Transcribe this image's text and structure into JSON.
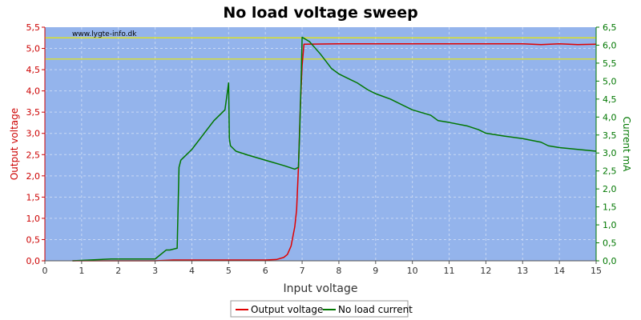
{
  "chart_data": {
    "type": "line",
    "title": "No load voltage sweep",
    "watermark": "www.lygte-info.dk",
    "xlabel": "Input voltage",
    "ylabel_left": "Output voltage",
    "ylabel_right": "Current mA",
    "xlim": [
      0,
      15
    ],
    "ylim_left": [
      0,
      5.5
    ],
    "ylim_right": [
      0,
      6.5
    ],
    "x_ticks": [
      "0",
      "1",
      "2",
      "3",
      "4",
      "5",
      "6",
      "7",
      "8",
      "9",
      "10",
      "11",
      "12",
      "13",
      "14",
      "15"
    ],
    "y_left_ticks": [
      "0,0",
      "0,5",
      "1,0",
      "1,5",
      "2,0",
      "2,5",
      "3,0",
      "3,5",
      "4,0",
      "4,5",
      "5,0",
      "5,5"
    ],
    "y_right_ticks": [
      "0,0",
      "0,5",
      "1,0",
      "1,5",
      "2,0",
      "2,5",
      "3,0",
      "3,5",
      "4,0",
      "4,5",
      "5,0",
      "5,5",
      "6,0",
      "6,5"
    ],
    "grid": true,
    "reference_lines_left": [
      5.25,
      4.75
    ],
    "legend_position": "bottom-center",
    "colors": {
      "plot_background": "#94b4ec",
      "grid": "#c8d8f4",
      "reference_line": "#e8e800",
      "left_axis": "#cc0000",
      "right_axis": "#007700",
      "bottom_axis": "#555555"
    },
    "series": [
      {
        "name": "Output voltage",
        "axis": "left",
        "color": "#e00000",
        "x": [
          0.75,
          3.0,
          3.5,
          4.0,
          5.0,
          6.0,
          6.3,
          6.5,
          6.6,
          6.7,
          6.8,
          6.85,
          6.9,
          6.95,
          7.0,
          7.05,
          8.0,
          10.0,
          13.0,
          13.5,
          14.0,
          14.5,
          15.0
        ],
        "values": [
          0.0,
          0.0,
          0.02,
          0.02,
          0.02,
          0.02,
          0.03,
          0.08,
          0.15,
          0.35,
          0.8,
          1.2,
          2.2,
          3.6,
          4.6,
          5.1,
          5.11,
          5.11,
          5.11,
          5.09,
          5.11,
          5.09,
          5.1
        ]
      },
      {
        "name": "No load current",
        "axis": "right",
        "color": "#007700",
        "x": [
          0.75,
          1.8,
          3.0,
          3.3,
          3.4,
          3.6,
          3.65,
          3.7,
          3.8,
          4.0,
          4.3,
          4.6,
          4.9,
          5.0,
          5.02,
          5.05,
          5.1,
          5.2,
          5.5,
          6.0,
          6.5,
          6.8,
          6.9,
          6.93,
          6.97,
          7.0,
          7.2,
          7.5,
          7.8,
          8.0,
          8.3,
          8.5,
          8.8,
          9.0,
          9.4,
          9.5,
          10.0,
          10.5,
          10.7,
          11.0,
          11.5,
          11.8,
          12.0,
          12.5,
          13.0,
          13.5,
          13.7,
          14.0,
          14.5,
          15.0
        ],
        "values": [
          0.0,
          0.05,
          0.05,
          0.3,
          0.3,
          0.35,
          2.6,
          2.8,
          2.9,
          3.1,
          3.5,
          3.9,
          4.2,
          4.95,
          3.4,
          3.2,
          3.15,
          3.05,
          2.95,
          2.8,
          2.65,
          2.55,
          2.6,
          3.5,
          4.9,
          6.22,
          6.1,
          5.75,
          5.35,
          5.2,
          5.05,
          4.95,
          4.75,
          4.65,
          4.5,
          4.45,
          4.2,
          4.05,
          3.9,
          3.85,
          3.75,
          3.65,
          3.55,
          3.47,
          3.4,
          3.3,
          3.2,
          3.15,
          3.1,
          3.05
        ]
      }
    ]
  }
}
